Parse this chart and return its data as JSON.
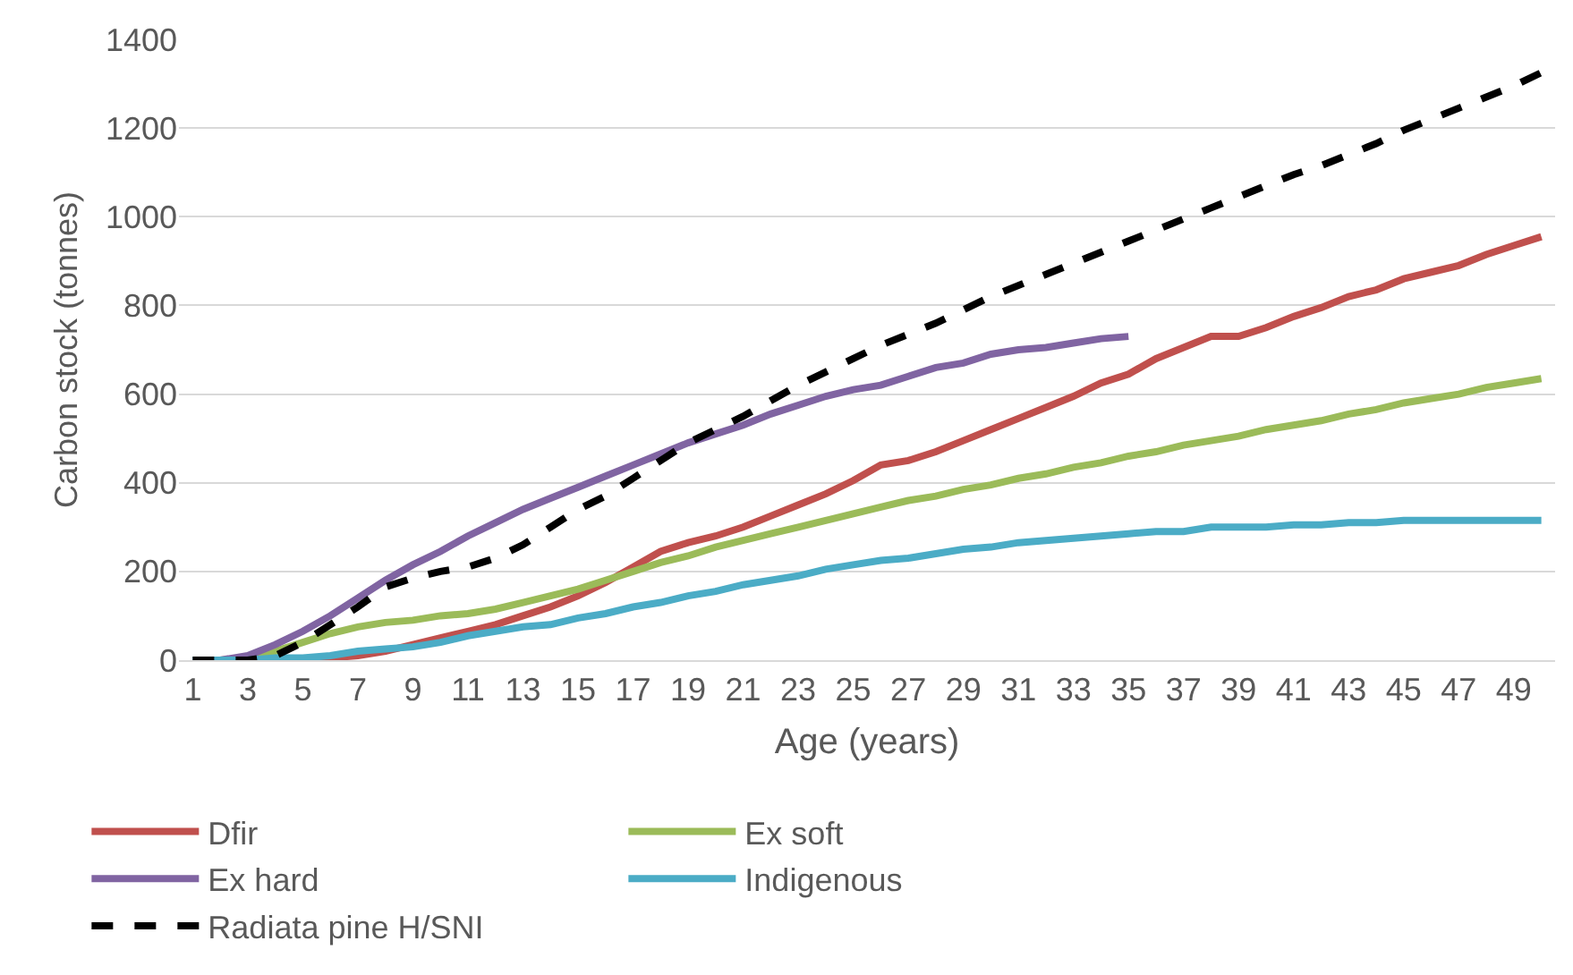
{
  "chart_data": {
    "type": "line",
    "xlabel": "Age (years)",
    "ylabel": "Carbon stock (tonnes)",
    "x": [
      1,
      2,
      3,
      4,
      5,
      6,
      7,
      8,
      9,
      10,
      11,
      12,
      13,
      14,
      15,
      16,
      17,
      18,
      19,
      20,
      21,
      22,
      23,
      24,
      25,
      26,
      27,
      28,
      29,
      30,
      31,
      32,
      33,
      34,
      35,
      36,
      37,
      38,
      39,
      40,
      41,
      42,
      43,
      44,
      45,
      46,
      47,
      48,
      49,
      50
    ],
    "xlim": [
      0.5,
      50.5
    ],
    "xticks": [
      1,
      3,
      5,
      7,
      9,
      11,
      13,
      15,
      17,
      19,
      21,
      23,
      25,
      27,
      29,
      31,
      33,
      35,
      37,
      39,
      41,
      43,
      45,
      47,
      49
    ],
    "ylim": [
      0,
      1400
    ],
    "yticks": [
      0,
      200,
      400,
      600,
      800,
      1000,
      1200,
      1400
    ],
    "grid": "y",
    "legend": "bottom",
    "marker": "none",
    "series": [
      {
        "name": "Dfir",
        "color": "#c0504d",
        "values": [
          null,
          null,
          null,
          null,
          0,
          5,
          10,
          20,
          35,
          50,
          65,
          80,
          100,
          120,
          145,
          175,
          210,
          245,
          265,
          280,
          300,
          325,
          350,
          375,
          405,
          440,
          450,
          470,
          495,
          520,
          545,
          570,
          595,
          625,
          645,
          680,
          705,
          730,
          730,
          750,
          775,
          795,
          820,
          835,
          860,
          875,
          890,
          915,
          935,
          955
        ]
      },
      {
        "name": "Ex soft",
        "color": "#9bbb59",
        "values": [
          0,
          0,
          5,
          20,
          40,
          60,
          75,
          85,
          90,
          100,
          105,
          115,
          130,
          145,
          160,
          180,
          200,
          220,
          235,
          255,
          270,
          285,
          300,
          315,
          330,
          345,
          360,
          370,
          385,
          395,
          410,
          420,
          435,
          445,
          460,
          470,
          485,
          495,
          505,
          520,
          530,
          540,
          555,
          565,
          580,
          590,
          600,
          615,
          625,
          635
        ]
      },
      {
        "name": "Ex hard",
        "color": "#8064a2",
        "values": [
          0,
          0,
          10,
          35,
          65,
          100,
          140,
          180,
          215,
          245,
          280,
          310,
          340,
          365,
          390,
          415,
          440,
          465,
          490,
          510,
          530,
          555,
          575,
          595,
          610,
          620,
          640,
          660,
          670,
          690,
          700,
          705,
          715,
          725,
          730,
          null,
          null,
          null,
          null,
          null,
          null,
          null,
          null,
          null,
          null,
          null,
          null,
          null,
          null,
          null
        ]
      },
      {
        "name": "Indigenous",
        "color": "#4bacc6",
        "values": [
          0,
          0,
          0,
          5,
          5,
          10,
          20,
          25,
          30,
          40,
          55,
          65,
          75,
          80,
          95,
          105,
          120,
          130,
          145,
          155,
          170,
          180,
          190,
          205,
          215,
          225,
          230,
          240,
          250,
          255,
          265,
          270,
          275,
          280,
          285,
          290,
          290,
          300,
          300,
          300,
          305,
          305,
          310,
          310,
          315,
          315,
          315,
          315,
          315,
          315
        ]
      },
      {
        "name": "Radiata pine H/SNI",
        "color": "#000000",
        "line_style": "dashed",
        "values": [
          0,
          0,
          0,
          10,
          40,
          80,
          120,
          165,
          185,
          200,
          210,
          230,
          260,
          300,
          340,
          370,
          410,
          450,
          490,
          520,
          550,
          585,
          620,
          650,
          680,
          710,
          735,
          760,
          790,
          820,
          845,
          870,
          895,
          920,
          945,
          970,
          995,
          1020,
          1045,
          1070,
          1095,
          1115,
          1140,
          1165,
          1195,
          1220,
          1245,
          1270,
          1295,
          1325
        ]
      }
    ]
  }
}
